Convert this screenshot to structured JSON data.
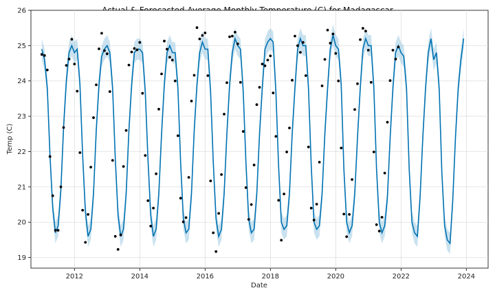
{
  "chart_data": {
    "type": "line",
    "title": "Actual & Forecasted Average Monthly Temperature (C) for Madagascar",
    "xlabel": "Date",
    "ylabel": "Temp (C)",
    "xlim": [
      "2010-09-01",
      "2024-09-01"
    ],
    "ylim": [
      18.7,
      26
    ],
    "x_ticks": [
      "2012",
      "2014",
      "2016",
      "2018",
      "2020",
      "2022",
      "2024"
    ],
    "y_ticks": [
      19,
      20,
      21,
      22,
      23,
      24,
      25,
      26
    ],
    "grid": true,
    "colors": {
      "forecast": "#0072B2",
      "band": "#9ecae1",
      "actual": "#000000"
    },
    "series": [
      {
        "kind": "forecast",
        "x": [
          "2011-01",
          "2011-02",
          "2011-03",
          "2011-04",
          "2011-05",
          "2011-06",
          "2011-07",
          "2011-08",
          "2011-09",
          "2011-10",
          "2011-11",
          "2011-12",
          "2012-01",
          "2012-02",
          "2012-03",
          "2012-04",
          "2012-05",
          "2012-06",
          "2012-07",
          "2012-08",
          "2012-09",
          "2012-10",
          "2012-11",
          "2012-12",
          "2013-01",
          "2013-02",
          "2013-03",
          "2013-04",
          "2013-05",
          "2013-06",
          "2013-07",
          "2013-08",
          "2013-09",
          "2013-10",
          "2013-11",
          "2013-12",
          "2014-01",
          "2014-02",
          "2014-03",
          "2014-04",
          "2014-05",
          "2014-06",
          "2014-07",
          "2014-08",
          "2014-09",
          "2014-10",
          "2014-11",
          "2014-12",
          "2015-01",
          "2015-02",
          "2015-03",
          "2015-04",
          "2015-05",
          "2015-06",
          "2015-07",
          "2015-08",
          "2015-09",
          "2015-10",
          "2015-11",
          "2015-12",
          "2016-01",
          "2016-02",
          "2016-03",
          "2016-04",
          "2016-05",
          "2016-06",
          "2016-07",
          "2016-08",
          "2016-09",
          "2016-10",
          "2016-11",
          "2016-12",
          "2017-01",
          "2017-02",
          "2017-03",
          "2017-04",
          "2017-05",
          "2017-06",
          "2017-07",
          "2017-08",
          "2017-09",
          "2017-10",
          "2017-11",
          "2017-12",
          "2018-01",
          "2018-02",
          "2018-03",
          "2018-04",
          "2018-05",
          "2018-06",
          "2018-07",
          "2018-08",
          "2018-09",
          "2018-10",
          "2018-11",
          "2018-12",
          "2019-01",
          "2019-02",
          "2019-03",
          "2019-04",
          "2019-05",
          "2019-06",
          "2019-07",
          "2019-08",
          "2019-09",
          "2019-10",
          "2019-11",
          "2019-12",
          "2020-01",
          "2020-02",
          "2020-03",
          "2020-04",
          "2020-05",
          "2020-06",
          "2020-07",
          "2020-08",
          "2020-09",
          "2020-10",
          "2020-11",
          "2020-12",
          "2021-01",
          "2021-02",
          "2021-03",
          "2021-04",
          "2021-05",
          "2021-06",
          "2021-07",
          "2021-08",
          "2021-09",
          "2021-10",
          "2021-11",
          "2021-12",
          "2022-01",
          "2022-02",
          "2022-03",
          "2022-04",
          "2022-05",
          "2022-06",
          "2022-07",
          "2022-08",
          "2022-09",
          "2022-10",
          "2022-11",
          "2022-12",
          "2023-01",
          "2023-02",
          "2023-03",
          "2023-04",
          "2023-05",
          "2023-06",
          "2023-07",
          "2023-08",
          "2023-09",
          "2023-10",
          "2023-11",
          "2023-12"
        ],
        "y": [
          24.9,
          24.6,
          23.8,
          21.9,
          20.4,
          19.7,
          19.9,
          20.9,
          22.7,
          24.0,
          24.8,
          25.0,
          24.8,
          24.9,
          23.9,
          21.9,
          20.3,
          19.6,
          19.8,
          20.8,
          22.6,
          23.9,
          24.7,
          24.9,
          25.0,
          24.8,
          23.8,
          21.8,
          20.2,
          19.6,
          19.8,
          20.8,
          22.6,
          23.9,
          24.8,
          24.9,
          24.9,
          24.8,
          23.7,
          21.8,
          20.2,
          19.6,
          19.8,
          20.8,
          22.5,
          23.9,
          24.8,
          25.0,
          24.8,
          24.8,
          23.8,
          21.7,
          20.1,
          19.7,
          19.8,
          20.8,
          22.6,
          23.9,
          24.8,
          25.1,
          24.9,
          24.9,
          23.7,
          21.7,
          20.1,
          19.6,
          19.8,
          20.8,
          22.5,
          23.9,
          24.8,
          25.2,
          25.0,
          24.9,
          23.7,
          21.7,
          20.1,
          19.7,
          19.8,
          20.8,
          22.5,
          23.8,
          24.9,
          25.1,
          25.2,
          25.1,
          23.7,
          21.6,
          20.0,
          19.8,
          19.9,
          20.8,
          22.5,
          23.8,
          24.9,
          25.2,
          25.0,
          25.0,
          23.8,
          21.6,
          20.0,
          19.8,
          19.9,
          20.8,
          22.5,
          23.8,
          24.9,
          25.3,
          25.0,
          24.9,
          23.9,
          21.5,
          20.0,
          19.7,
          19.9,
          20.8,
          22.4,
          23.8,
          24.9,
          25.2,
          25.0,
          25.0,
          23.8,
          21.5,
          20.0,
          19.7,
          19.9,
          20.7,
          22.4,
          23.8,
          24.8,
          25.0,
          24.8,
          24.7,
          23.8,
          21.5,
          20.0,
          19.7,
          19.6,
          20.7,
          22.4,
          23.8,
          24.8,
          25.2,
          24.6,
          24.8,
          23.8,
          21.4,
          19.9,
          19.5,
          19.4,
          20.6,
          22.4,
          23.8,
          24.6,
          25.2
        ]
      },
      {
        "kind": "actual",
        "x": [
          "2011-01",
          "2011-02",
          "2011-03",
          "2011-04",
          "2011-05",
          "2011-06",
          "2011-07",
          "2011-08",
          "2011-09",
          "2011-10",
          "2011-11",
          "2011-12",
          "2012-01",
          "2012-02",
          "2012-03",
          "2012-04",
          "2012-05",
          "2012-06",
          "2012-07",
          "2012-08",
          "2012-09",
          "2012-10",
          "2012-11",
          "2012-12",
          "2013-01",
          "2013-02",
          "2013-03",
          "2013-04",
          "2013-05",
          "2013-06",
          "2013-07",
          "2013-08",
          "2013-09",
          "2013-10",
          "2013-11",
          "2013-12",
          "2014-01",
          "2014-02",
          "2014-03",
          "2014-04",
          "2014-05",
          "2014-06",
          "2014-07",
          "2014-08",
          "2014-09",
          "2014-10",
          "2014-11",
          "2014-12",
          "2015-01",
          "2015-02",
          "2015-03",
          "2015-04",
          "2015-05",
          "2015-06",
          "2015-07",
          "2015-08",
          "2015-09",
          "2015-10",
          "2015-11",
          "2015-12",
          "2016-01",
          "2016-02",
          "2016-03",
          "2016-04",
          "2016-05",
          "2016-06",
          "2016-07",
          "2016-08",
          "2016-09",
          "2016-10",
          "2016-11",
          "2016-12",
          "2017-01",
          "2017-02",
          "2017-03",
          "2017-04",
          "2017-05",
          "2017-06",
          "2017-07",
          "2017-08",
          "2017-09",
          "2017-10",
          "2017-11",
          "2017-12",
          "2018-01",
          "2018-02",
          "2018-03",
          "2018-04",
          "2018-05",
          "2018-06",
          "2018-07",
          "2018-08",
          "2018-09",
          "2018-10",
          "2018-11",
          "2018-12",
          "2019-01",
          "2019-02",
          "2019-03",
          "2019-04",
          "2019-05",
          "2019-06",
          "2019-07",
          "2019-08",
          "2019-09",
          "2019-10",
          "2019-11",
          "2019-12",
          "2020-01",
          "2020-02",
          "2020-03",
          "2020-04",
          "2020-05",
          "2020-06",
          "2020-07",
          "2020-08",
          "2020-09",
          "2020-10",
          "2020-11",
          "2020-12",
          "2021-01",
          "2021-02",
          "2021-03",
          "2021-04",
          "2021-05",
          "2021-06",
          "2021-07",
          "2021-08",
          "2021-09",
          "2021-10",
          "2021-11",
          "2021-12"
        ],
        "y": [
          24.75,
          24.72,
          24.31,
          21.86,
          20.75,
          19.77,
          19.77,
          21.0,
          22.68,
          24.44,
          24.62,
          25.18,
          24.48,
          23.71,
          21.97,
          20.34,
          19.43,
          20.22,
          21.56,
          22.96,
          23.89,
          24.91,
          25.35,
          24.86,
          24.77,
          23.7,
          21.75,
          19.6,
          19.23,
          19.64,
          21.58,
          22.6,
          24.45,
          24.82,
          24.92,
          24.88,
          25.09,
          23.65,
          21.89,
          20.61,
          19.89,
          20.4,
          21.37,
          23.2,
          24.2,
          25.13,
          24.9,
          24.67,
          24.59,
          24.0,
          22.45,
          20.68,
          20.01,
          20.13,
          21.27,
          23.43,
          24.16,
          25.51,
          25.19,
          25.29,
          25.36,
          24.15,
          21.17,
          19.7,
          19.17,
          20.25,
          21.35,
          23.06,
          23.95,
          25.25,
          25.27,
          25.38,
          25.05,
          23.96,
          22.57,
          20.98,
          20.08,
          20.5,
          21.62,
          23.33,
          23.82,
          24.48,
          24.43,
          24.59,
          24.71,
          23.66,
          22.43,
          20.62,
          19.49,
          20.8,
          21.99,
          22.67,
          24.02,
          25.27,
          25.0,
          24.81,
          25.09,
          24.15,
          22.13,
          20.4,
          20.06,
          20.51,
          21.7,
          23.86,
          24.61,
          25.44,
          25.07,
          25.33,
          24.78,
          24.0,
          22.1,
          20.23,
          19.59,
          20.22,
          21.21,
          23.19,
          23.92,
          25.17,
          25.49,
          25.41,
          24.87,
          23.96,
          21.99,
          19.93,
          19.75,
          20.14,
          21.39,
          22.83,
          24.01,
          24.87,
          24.62,
          24.96
        ]
      }
    ]
  }
}
